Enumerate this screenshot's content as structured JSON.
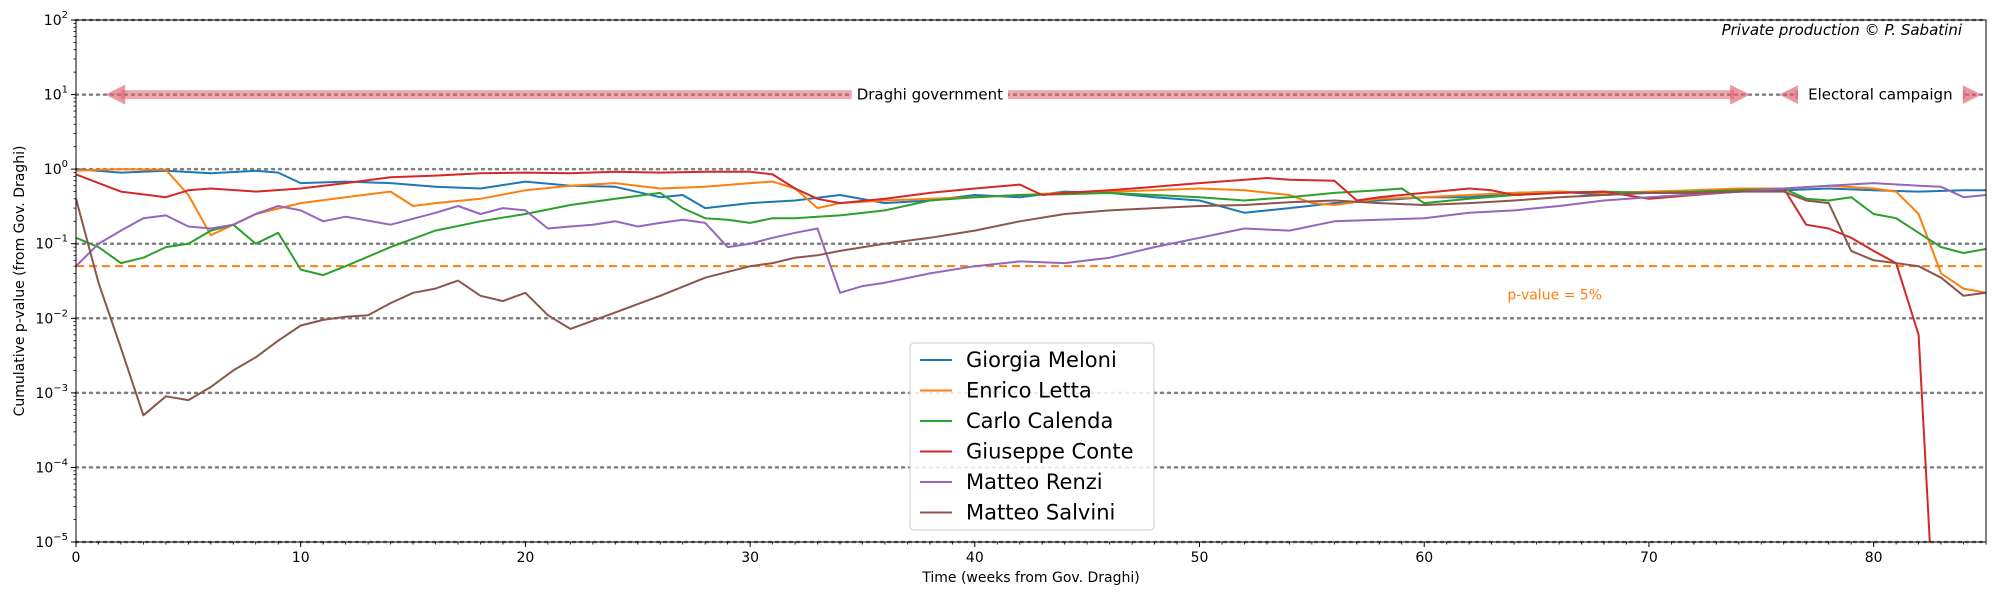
{
  "chart_data": {
    "type": "line",
    "xlabel": "Time (weeks from Gov. Draghi)",
    "ylabel": "Cumulative p-value (from Gov. Draghi)",
    "xlim": [
      0,
      85
    ],
    "ylim": [
      1e-05,
      100
    ],
    "yscale": "log",
    "x_ticks": [
      0,
      10,
      20,
      30,
      40,
      50,
      60,
      70,
      80
    ],
    "y_ticks": [
      {
        "value": 1e-05,
        "mantissa": "10",
        "exp": "−5"
      },
      {
        "value": 0.0001,
        "mantissa": "10",
        "exp": "−4"
      },
      {
        "value": 0.001,
        "mantissa": "10",
        "exp": "−3"
      },
      {
        "value": 0.01,
        "mantissa": "10",
        "exp": "−2"
      },
      {
        "value": 0.1,
        "mantissa": "10",
        "exp": "−1"
      },
      {
        "value": 1,
        "mantissa": "10",
        "exp": "0"
      },
      {
        "value": 10,
        "mantissa": "10",
        "exp": "1"
      },
      {
        "value": 100,
        "mantissa": "10",
        "exp": "2"
      }
    ],
    "grid": "dotted horizontal lines at each decade",
    "legend_position": "lower-center",
    "threshold": {
      "value": 0.05,
      "label": "p-value = 5%",
      "label_x": 63.7,
      "label_y": 0.021,
      "color": "#ff7f0e"
    },
    "annotations": [
      {
        "text": "Draghi government",
        "x_start": 1.3,
        "x_end": 74.5,
        "text_x": 38,
        "y": 10,
        "color": "#e06070"
      },
      {
        "text": "Electoral campaign",
        "x_start": 75.8,
        "x_end": 84.8,
        "text_x": 80.3,
        "y": 10,
        "color": "#e06070"
      }
    ],
    "credit": "Private production © P. Sabatini",
    "series": [
      {
        "name": "Giorgia Meloni",
        "color": "#1f77b4",
        "x": [
          0,
          2,
          4,
          6,
          8,
          9,
          10,
          12,
          14,
          16,
          18,
          20,
          22,
          24,
          26,
          27,
          28,
          30,
          32,
          34,
          36,
          38,
          40,
          42,
          44,
          46,
          48,
          50,
          52,
          54,
          56,
          58,
          60,
          62,
          64,
          66,
          68,
          70,
          72,
          74,
          76,
          78,
          80,
          82,
          84,
          85
        ],
        "y": [
          1.0,
          0.9,
          0.95,
          0.88,
          0.95,
          0.9,
          0.65,
          0.68,
          0.65,
          0.58,
          0.55,
          0.68,
          0.6,
          0.58,
          0.42,
          0.45,
          0.3,
          0.35,
          0.38,
          0.45,
          0.35,
          0.38,
          0.45,
          0.42,
          0.5,
          0.48,
          0.42,
          0.38,
          0.26,
          0.3,
          0.35,
          0.38,
          0.42,
          0.42,
          0.48,
          0.5,
          0.45,
          0.48,
          0.48,
          0.5,
          0.52,
          0.55,
          0.52,
          0.5,
          0.52,
          0.52
        ]
      },
      {
        "name": "Enrico Letta",
        "color": "#ff7f0e",
        "x": [
          0,
          1,
          2,
          4,
          5,
          6,
          7,
          8,
          10,
          12,
          14,
          15,
          16,
          18,
          20,
          22,
          24,
          26,
          28,
          30,
          31,
          32,
          33,
          34,
          36,
          38,
          40,
          42,
          44,
          46,
          48,
          50,
          52,
          54,
          55,
          56,
          58,
          60,
          62,
          64,
          66,
          68,
          70,
          72,
          74,
          76,
          78,
          80,
          81,
          82,
          83,
          84,
          85
        ],
        "y": [
          0.95,
          0.98,
          1.0,
          0.98,
          0.45,
          0.13,
          0.18,
          0.25,
          0.35,
          0.42,
          0.5,
          0.32,
          0.35,
          0.4,
          0.52,
          0.6,
          0.65,
          0.55,
          0.58,
          0.65,
          0.68,
          0.55,
          0.3,
          0.35,
          0.38,
          0.4,
          0.42,
          0.45,
          0.48,
          0.5,
          0.52,
          0.55,
          0.52,
          0.45,
          0.35,
          0.33,
          0.4,
          0.42,
          0.45,
          0.48,
          0.5,
          0.48,
          0.5,
          0.52,
          0.55,
          0.55,
          0.6,
          0.55,
          0.5,
          0.25,
          0.04,
          0.025,
          0.022
        ]
      },
      {
        "name": "Carlo Calenda",
        "color": "#2ca02c",
        "x": [
          0,
          1,
          2,
          3,
          4,
          5,
          6,
          7,
          8,
          9,
          10,
          11,
          12,
          14,
          16,
          18,
          20,
          22,
          24,
          26,
          27,
          28,
          29,
          30,
          31,
          32,
          33,
          34,
          36,
          38,
          40,
          42,
          44,
          46,
          48,
          50,
          52,
          54,
          56,
          58,
          59,
          60,
          62,
          64,
          66,
          68,
          70,
          72,
          74,
          76,
          77,
          78,
          79,
          80,
          81,
          82,
          83,
          84,
          85
        ],
        "y": [
          0.12,
          0.09,
          0.055,
          0.065,
          0.09,
          0.1,
          0.15,
          0.18,
          0.1,
          0.14,
          0.045,
          0.038,
          0.05,
          0.09,
          0.15,
          0.2,
          0.25,
          0.33,
          0.4,
          0.48,
          0.3,
          0.22,
          0.21,
          0.19,
          0.22,
          0.22,
          0.23,
          0.24,
          0.28,
          0.38,
          0.42,
          0.45,
          0.46,
          0.48,
          0.45,
          0.42,
          0.38,
          0.42,
          0.48,
          0.52,
          0.55,
          0.35,
          0.4,
          0.45,
          0.48,
          0.5,
          0.48,
          0.5,
          0.52,
          0.55,
          0.4,
          0.38,
          0.42,
          0.25,
          0.22,
          0.14,
          0.09,
          0.075,
          0.085
        ]
      },
      {
        "name": "Giuseppe Conte",
        "color": "#d62728",
        "x": [
          0,
          2,
          4,
          5,
          6,
          8,
          10,
          12,
          14,
          16,
          18,
          20,
          22,
          24,
          26,
          28,
          30,
          31,
          32,
          33,
          34,
          36,
          38,
          40,
          42,
          43,
          44,
          46,
          48,
          50,
          52,
          53,
          54,
          56,
          57,
          58,
          60,
          62,
          63,
          64,
          66,
          68,
          70,
          72,
          74,
          76,
          77,
          78,
          79,
          80,
          81,
          82,
          82.5
        ],
        "y": [
          0.85,
          0.5,
          0.42,
          0.52,
          0.55,
          0.5,
          0.55,
          0.65,
          0.78,
          0.82,
          0.88,
          0.9,
          0.88,
          0.92,
          0.9,
          0.92,
          0.92,
          0.85,
          0.55,
          0.4,
          0.35,
          0.4,
          0.48,
          0.55,
          0.62,
          0.45,
          0.48,
          0.52,
          0.58,
          0.65,
          0.72,
          0.76,
          0.72,
          0.7,
          0.38,
          0.42,
          0.48,
          0.55,
          0.52,
          0.45,
          0.48,
          0.5,
          0.4,
          0.45,
          0.5,
          0.55,
          0.18,
          0.16,
          0.12,
          0.08,
          0.055,
          0.006,
          1e-05
        ]
      },
      {
        "name": "Matteo Renzi",
        "color": "#9467bd",
        "x": [
          0,
          1,
          2,
          3,
          4,
          5,
          6,
          7,
          8,
          9,
          10,
          11,
          12,
          14,
          16,
          17,
          18,
          19,
          20,
          21,
          22,
          23,
          24,
          25,
          26,
          27,
          28,
          29,
          30,
          31,
          32,
          33,
          34,
          35,
          36,
          38,
          40,
          42,
          44,
          46,
          48,
          50,
          52,
          54,
          56,
          58,
          60,
          62,
          64,
          66,
          68,
          70,
          72,
          74,
          76,
          78,
          80,
          82,
          83,
          84,
          85
        ],
        "y": [
          0.05,
          0.1,
          0.15,
          0.22,
          0.24,
          0.17,
          0.16,
          0.18,
          0.25,
          0.32,
          0.28,
          0.2,
          0.23,
          0.18,
          0.26,
          0.32,
          0.25,
          0.3,
          0.28,
          0.16,
          0.17,
          0.18,
          0.2,
          0.17,
          0.19,
          0.21,
          0.19,
          0.09,
          0.1,
          0.12,
          0.14,
          0.16,
          0.022,
          0.027,
          0.03,
          0.04,
          0.05,
          0.058,
          0.055,
          0.065,
          0.09,
          0.12,
          0.16,
          0.15,
          0.2,
          0.21,
          0.22,
          0.26,
          0.28,
          0.32,
          0.38,
          0.42,
          0.46,
          0.5,
          0.55,
          0.6,
          0.65,
          0.6,
          0.58,
          0.42,
          0.45
        ]
      },
      {
        "name": "Matteo Salvini",
        "color": "#8c564b",
        "x": [
          0,
          1,
          2,
          3,
          4,
          5,
          6,
          7,
          8,
          9,
          10,
          11,
          12,
          13,
          14,
          15,
          16,
          17,
          18,
          19,
          20,
          21,
          22,
          24,
          26,
          28,
          30,
          31,
          32,
          33,
          34,
          36,
          38,
          40,
          42,
          44,
          46,
          48,
          50,
          52,
          54,
          56,
          58,
          60,
          62,
          64,
          66,
          68,
          70,
          72,
          74,
          76,
          77,
          78,
          79,
          80,
          81,
          82,
          83,
          84,
          85
        ],
        "y": [
          0.4,
          0.03,
          0.004,
          0.0005,
          0.0009,
          0.0008,
          0.0012,
          0.002,
          0.003,
          0.005,
          0.008,
          0.0095,
          0.0105,
          0.011,
          0.016,
          0.022,
          0.025,
          0.032,
          0.02,
          0.017,
          0.022,
          0.011,
          0.0072,
          0.012,
          0.02,
          0.035,
          0.05,
          0.055,
          0.065,
          0.07,
          0.08,
          0.1,
          0.12,
          0.15,
          0.2,
          0.25,
          0.28,
          0.3,
          0.32,
          0.33,
          0.36,
          0.38,
          0.35,
          0.33,
          0.35,
          0.38,
          0.42,
          0.45,
          0.48,
          0.48,
          0.5,
          0.5,
          0.38,
          0.35,
          0.08,
          0.06,
          0.055,
          0.05,
          0.035,
          0.02,
          0.022
        ]
      }
    ]
  }
}
